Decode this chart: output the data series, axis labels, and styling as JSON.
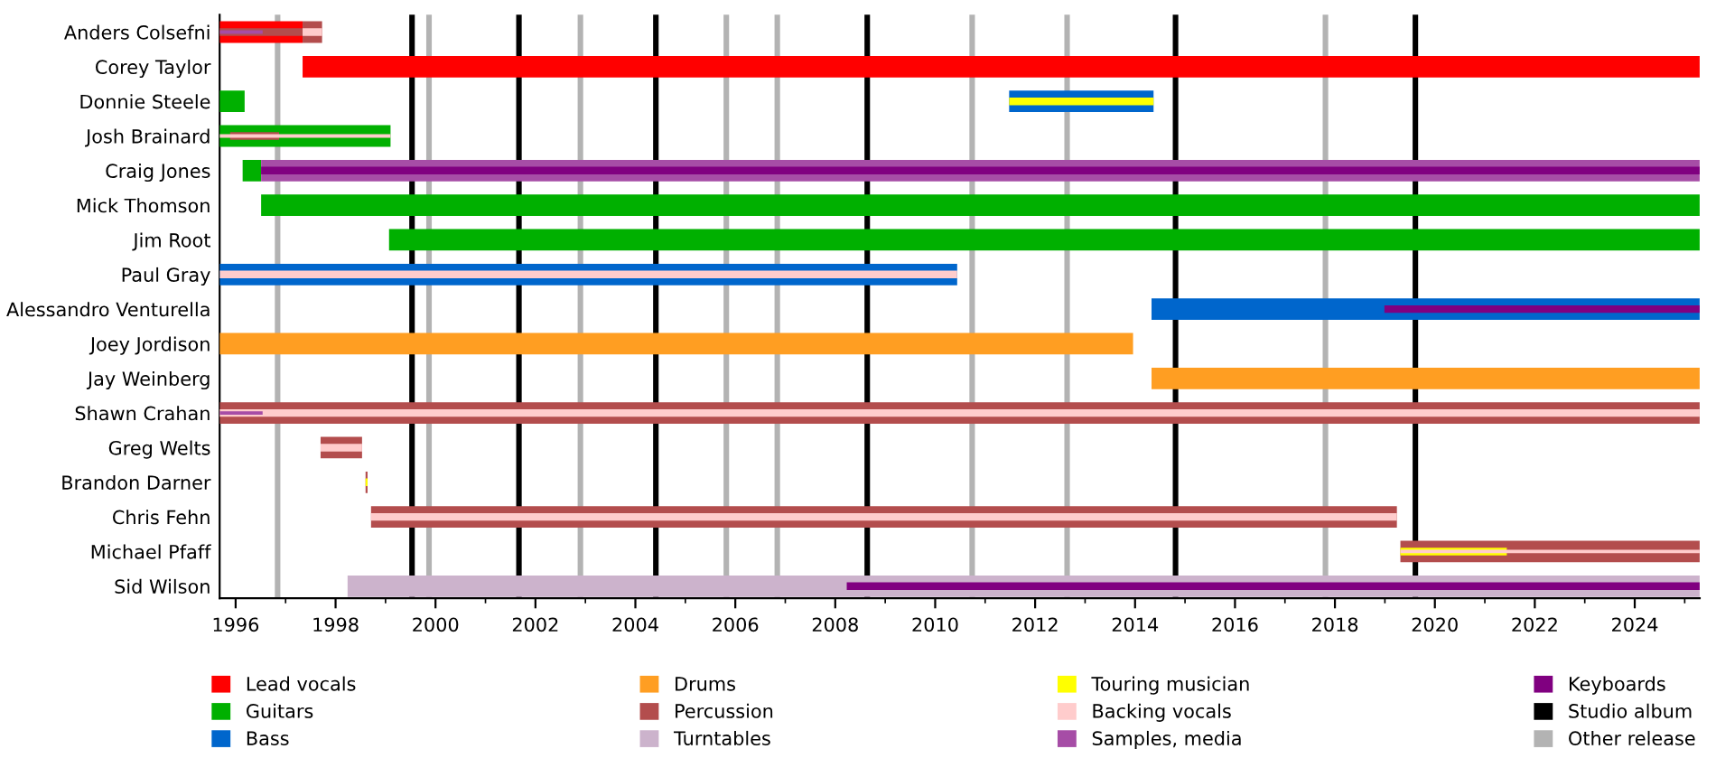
{
  "chart_data": {
    "type": "bar",
    "orientation": "horizontal",
    "categories": [
      "Anders Colsefni",
      "Corey Taylor",
      "Donnie Steele",
      "Josh Brainard",
      "Craig Jones",
      "Mick Thomson",
      "Jim Root",
      "Paul Gray",
      "Alessandro Venturella",
      "Joey Jordison",
      "Jay Weinberg",
      "Shawn Crahan",
      "Greg Welts",
      "Brandon Darner",
      "Chris Fehn",
      "Michael Pfaff",
      "Sid Wilson"
    ],
    "xlim": [
      1995.68,
      2025.3
    ],
    "xticks": [
      1996,
      {
        "value": 1997,
        "label": null
      },
      1998,
      {
        "value": 1999,
        "label": null
      },
      2000,
      {
        "value": 2001,
        "label": null
      },
      2002,
      {
        "value": 2003,
        "label": null
      },
      2004,
      {
        "value": 2005,
        "label": null
      },
      2006,
      {
        "value": 2007,
        "label": null
      },
      2008,
      {
        "value": 2009,
        "label": null
      },
      2010,
      {
        "value": 2011,
        "label": null
      },
      2012,
      {
        "value": 2013,
        "label": null
      },
      2014,
      {
        "value": 2015,
        "label": null
      },
      2016,
      {
        "value": 2017,
        "label": null
      },
      2018,
      {
        "value": 2019,
        "label": null
      },
      2020,
      {
        "value": 2021,
        "label": null
      },
      2022,
      {
        "value": 2023,
        "label": null
      },
      2024,
      {
        "value": 2025,
        "label": null
      }
    ],
    "grid": false,
    "legend": "bottom",
    "series": [
      {
        "name": "Lead vocals",
        "color": "#ff0000",
        "base": [
          1995.68,
          1997.34,
          null,
          null,
          null,
          null,
          null,
          null,
          null,
          null,
          null,
          null,
          null,
          null,
          null,
          null,
          null
        ],
        "values": [
          1.66,
          27.96,
          null,
          null,
          null,
          null,
          null,
          null,
          null,
          null,
          null,
          null,
          null,
          null,
          null,
          null,
          null
        ]
      },
      {
        "name": "Guitars",
        "color": "#00b000",
        "base": [
          null,
          null,
          1995.68,
          1995.68,
          1996.14,
          1996.51,
          1999.07,
          null,
          null,
          null,
          null,
          null,
          null,
          null,
          null,
          null,
          null
        ],
        "values": [
          null,
          null,
          0.5,
          3.42,
          0.37,
          28.79,
          26.23,
          null,
          null,
          null,
          null,
          null,
          null,
          null,
          null,
          null,
          null
        ]
      },
      {
        "name": "Bass",
        "color": "#0066cc",
        "base": [
          null,
          null,
          2011.48,
          null,
          null,
          null,
          null,
          1995.68,
          2014.33,
          null,
          null,
          null,
          null,
          null,
          null,
          null,
          null
        ],
        "values": [
          null,
          null,
          2.89,
          null,
          null,
          null,
          null,
          14.76,
          10.97,
          null,
          null,
          null,
          null,
          null,
          null,
          null,
          null
        ]
      },
      {
        "name": "Drums",
        "color": "#ff9e22",
        "base": [
          null,
          null,
          null,
          null,
          null,
          null,
          null,
          null,
          null,
          1995.68,
          2014.33,
          null,
          null,
          null,
          null,
          null,
          null
        ],
        "values": [
          null,
          null,
          null,
          null,
          null,
          null,
          null,
          null,
          null,
          18.28,
          10.97,
          null,
          null,
          null,
          null,
          null,
          null
        ]
      },
      {
        "name": "Percussion",
        "color": "#b34d4d",
        "base": [
          1995.68,
          null,
          null,
          1995.89,
          null,
          null,
          null,
          null,
          null,
          null,
          null,
          1995.68,
          1997.7,
          1998.6,
          1998.71,
          2019.31,
          null
        ],
        "values": [
          1.66,
          null,
          null,
          0.98,
          null,
          null,
          null,
          null,
          null,
          null,
          null,
          29.62,
          0.83,
          0.04,
          20.53,
          5.99,
          null
        ]
      },
      {
        "color": "#b34d4d",
        "base": [
          1997.34,
          null,
          null,
          null,
          null,
          null,
          null,
          null,
          null,
          null,
          null,
          null,
          null,
          null,
          null,
          null,
          null
        ],
        "values": [
          0.39,
          null,
          null,
          null,
          null,
          null,
          null,
          null,
          null,
          null,
          null,
          null,
          null,
          null,
          null,
          null,
          null
        ]
      },
      {
        "name": "Turntables",
        "color": "#ccb3cc",
        "base": [
          null,
          null,
          null,
          null,
          null,
          null,
          null,
          null,
          null,
          null,
          null,
          null,
          null,
          null,
          null,
          null,
          1998.24
        ],
        "values": [
          null,
          null,
          null,
          null,
          null,
          null,
          null,
          null,
          null,
          null,
          null,
          null,
          null,
          null,
          null,
          null,
          27.06
        ]
      },
      {
        "name": "Touring musician",
        "color": "#ffff00",
        "base": [
          null,
          null,
          2011.48,
          null,
          null,
          null,
          null,
          null,
          null,
          null,
          null,
          null,
          null,
          1998.6,
          null,
          2019.31,
          null
        ],
        "values": [
          null,
          null,
          2.89,
          null,
          null,
          null,
          null,
          null,
          null,
          null,
          null,
          null,
          null,
          0.04,
          null,
          2.13,
          null
        ]
      },
      {
        "name": "Backing vocals",
        "color": "#ffcccc",
        "base": [
          1997.34,
          null,
          null,
          1995.68,
          null,
          null,
          null,
          1995.68,
          null,
          null,
          null,
          1995.68,
          1997.7,
          null,
          1998.71,
          2019.31,
          null
        ],
        "values": [
          0.39,
          null,
          null,
          3.42,
          null,
          null,
          null,
          14.76,
          null,
          null,
          null,
          29.62,
          0.83,
          null,
          20.53,
          5.99,
          null
        ]
      },
      {
        "name": "Samples, media",
        "color": "#a64da6",
        "base": [
          1995.68,
          null,
          null,
          null,
          1996.51,
          null,
          null,
          null,
          null,
          null,
          null,
          1995.68,
          null,
          null,
          null,
          null,
          null
        ],
        "values": [
          0.86,
          null,
          null,
          null,
          28.79,
          null,
          null,
          null,
          null,
          null,
          null,
          0.86,
          null,
          null,
          null,
          null,
          null
        ]
      },
      {
        "name": "Keyboards",
        "color": "#800080",
        "base": [
          null,
          null,
          null,
          null,
          1996.51,
          null,
          null,
          null,
          2018.99,
          null,
          null,
          null,
          null,
          null,
          null,
          null,
          2008.23
        ],
        "values": [
          null,
          null,
          null,
          null,
          28.79,
          null,
          null,
          null,
          6.31,
          null,
          null,
          null,
          null,
          null,
          null,
          null,
          17.07
        ]
      }
    ],
    "ref_lines": [
      {
        "axis": "x",
        "value": 1999.53,
        "label": "Studio album",
        "color": "#000000"
      },
      {
        "axis": "x",
        "value": 2001.67,
        "color": "#000000"
      },
      {
        "axis": "x",
        "value": 2004.41,
        "color": "#000000"
      },
      {
        "axis": "x",
        "value": 2008.64,
        "color": "#000000"
      },
      {
        "axis": "x",
        "value": 2014.81,
        "color": "#000000"
      },
      {
        "axis": "x",
        "value": 2019.61,
        "color": "#000000"
      },
      {
        "axis": "x",
        "value": 1996.84,
        "label": "Other release",
        "color": "#b3b3b3"
      },
      {
        "axis": "x",
        "value": 1999.87,
        "color": "#b3b3b3"
      },
      {
        "axis": "x",
        "value": 2002.9,
        "color": "#b3b3b3"
      },
      {
        "axis": "x",
        "value": 2005.82,
        "color": "#b3b3b3"
      },
      {
        "axis": "x",
        "value": 2006.84,
        "color": "#b3b3b3"
      },
      {
        "axis": "x",
        "value": 2010.74,
        "color": "#b3b3b3"
      },
      {
        "axis": "x",
        "value": 2012.64,
        "color": "#b3b3b3"
      },
      {
        "axis": "x",
        "value": 2017.81,
        "color": "#b3b3b3"
      }
    ]
  }
}
